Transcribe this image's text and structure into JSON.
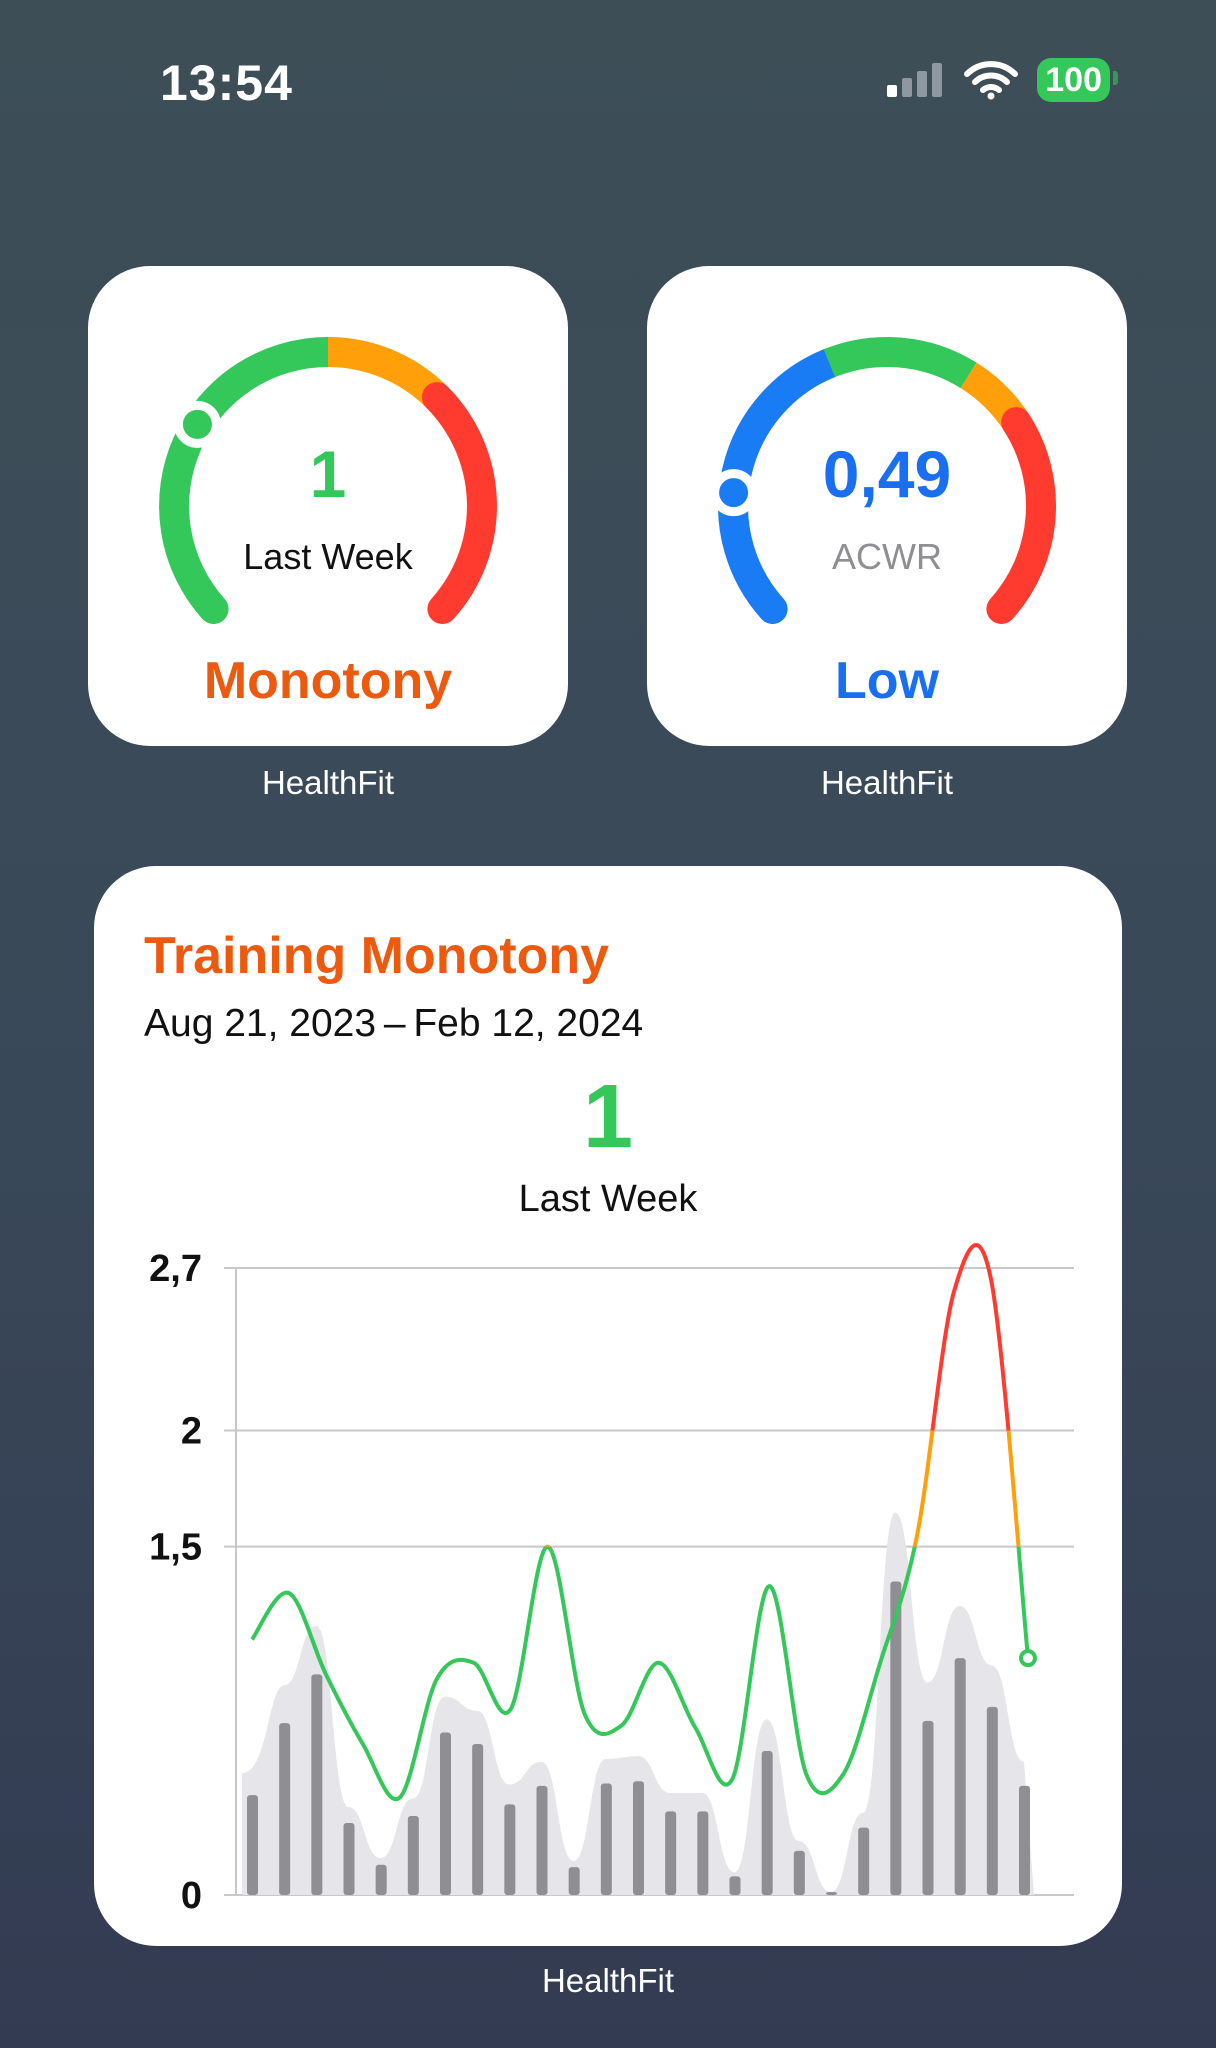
{
  "status_bar": {
    "time": "13:54",
    "battery": "100"
  },
  "widgets": [
    {
      "value": "1",
      "subtitle": "Last Week",
      "status": "Monotony",
      "caption": "HealthFit",
      "value_color": "#34c759",
      "subtitle_color": "#111111",
      "status_color": "#ec5a10"
    },
    {
      "value": "0,49",
      "subtitle": "ACWR",
      "status": "Low",
      "caption": "HealthFit",
      "value_color": "#1a6ff0",
      "subtitle_color": "#8e8e93",
      "status_color": "#1a6ff0"
    }
  ],
  "monotony_widget": {
    "title": "Training Monotony",
    "date_range": "Aug 21, 2023 – Feb 12, 2024",
    "value": "1",
    "subtitle": "Last Week",
    "caption": "HealthFit"
  },
  "chart_data": {
    "type": "bar",
    "y_ticks": [
      "2,7",
      "2",
      "1,5",
      "0"
    ],
    "y_tick_values": [
      2.7,
      2,
      1.5,
      0
    ],
    "ylim": [
      0,
      2.7
    ],
    "grid": true,
    "bar_color": "#8e8e93",
    "area_color": "#e5e5ea",
    "bars": [
      0.43,
      0.74,
      0.95,
      0.31,
      0.13,
      0.34,
      0.7,
      0.65,
      0.39,
      0.47,
      0.12,
      0.48,
      0.49,
      0.36,
      0.36,
      0.08,
      0.62,
      0.19,
      0.01,
      0.29,
      1.35,
      0.75,
      1.02,
      0.81,
      0.47
    ],
    "line_series": {
      "name": "",
      "values": [
        1.1,
        1.3,
        0.95,
        0.65,
        0.42,
        0.93,
        1.0,
        0.8,
        1.5,
        0.78,
        0.73,
        1.0,
        0.72,
        0.5,
        1.33,
        0.52,
        0.52,
        1.0,
        1.55,
        2.6,
        2.65,
        1.02
      ],
      "thresholds": {
        "green_max": 1.5,
        "orange_max": 2.0
      },
      "colors": {
        "green": "#34c759",
        "orange": "#ff9f0a",
        "red": "#ff3b30"
      }
    }
  }
}
